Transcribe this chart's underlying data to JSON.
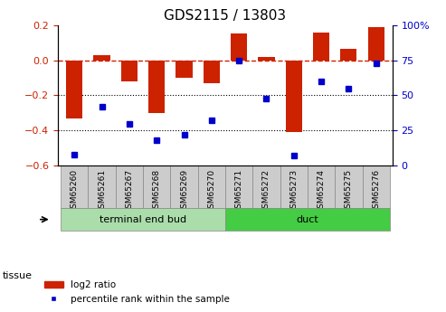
{
  "title": "GDS2115 / 13803",
  "samples": [
    "GSM65260",
    "GSM65261",
    "GSM65267",
    "GSM65268",
    "GSM65269",
    "GSM65270",
    "GSM65271",
    "GSM65272",
    "GSM65273",
    "GSM65274",
    "GSM65275",
    "GSM65276"
  ],
  "log2_ratio": [
    -0.33,
    0.03,
    -0.12,
    -0.3,
    -0.1,
    -0.13,
    0.15,
    0.02,
    -0.41,
    0.155,
    0.065,
    0.19
  ],
  "pct_rank": [
    8,
    42,
    30,
    18,
    22,
    32,
    75,
    48,
    7,
    60,
    55,
    73
  ],
  "bar_color": "#cc2200",
  "dot_color": "#0000cc",
  "zero_line_color": "#cc2200",
  "grid_color": "#000000",
  "ylim_left": [
    -0.6,
    0.2
  ],
  "ylim_right": [
    0,
    100
  ],
  "yticks_left": [
    0.2,
    0.0,
    -0.2,
    -0.4,
    -0.6
  ],
  "yticks_right": [
    100,
    75,
    50,
    25,
    0
  ],
  "group1_label": "terminal end bud",
  "group2_label": "duct",
  "group1_indices": [
    0,
    1,
    2,
    3,
    4,
    5
  ],
  "group2_indices": [
    6,
    7,
    8,
    9,
    10,
    11
  ],
  "group1_color": "#aaddaa",
  "group2_color": "#44cc44",
  "tissue_label": "tissue",
  "legend_bar_label": "log2 ratio",
  "legend_dot_label": "percentile rank within the sample",
  "bar_width": 0.6,
  "ylabel_left_color": "#cc2200",
  "ylabel_right_color": "#0000cc",
  "label_bg_color": "#cccccc",
  "label_edge_color": "#888888"
}
